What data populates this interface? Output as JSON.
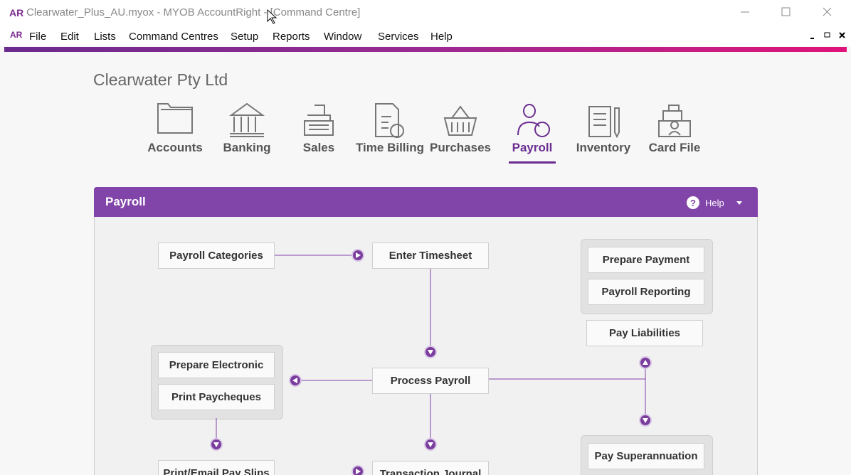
{
  "window": {
    "badge": "AR",
    "title": "Clearwater_Plus_AU.myox - MYOB AccountRight - [Command Centre]"
  },
  "menu": {
    "badge": "AR",
    "items": [
      "File",
      "Edit",
      "Lists",
      "Command Centres",
      "Setup",
      "Reports",
      "Window",
      "Services",
      "Help"
    ]
  },
  "company": "Clearwater Pty Ltd",
  "command_centres": {
    "items": [
      "Accounts",
      "Banking",
      "Sales",
      "Time Billing",
      "Purchases",
      "Payroll",
      "Inventory",
      "Card File"
    ],
    "selected_index": 5
  },
  "panel": {
    "title": "Payroll",
    "help": "Help"
  },
  "tasks": [
    "Payroll Categories",
    "Enter Timesheet",
    "Prepare Payment",
    "Payroll Reporting",
    "Pay Liabilities",
    "Prepare Electronic",
    "Print Paycheques",
    "Process Payroll",
    "Pay Superannuation",
    "Print/Email Pay Slips",
    "Transaction Journal"
  ]
}
